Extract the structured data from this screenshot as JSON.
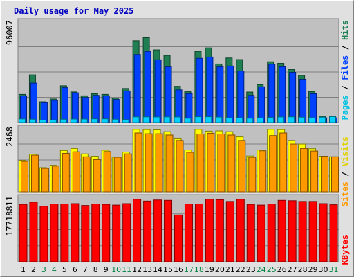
{
  "title": "Daily usage for May 2025",
  "colors": {
    "background": "#e0e0e0",
    "plot_bg": "#c0c0c0",
    "title_text": "#0000c0",
    "hits": "#1f7f52",
    "files": "#0040ff",
    "pages": "#00d0ff",
    "visits": "#ffff00",
    "sites": "#ff9900",
    "kbytes": "#ff0000",
    "weekend_label": "#008040",
    "weekday_label": "#000000"
  },
  "legends": {
    "top": [
      {
        "text": "Pages",
        "color": "#00c0e0"
      },
      {
        "text": " / ",
        "color": "#000000"
      },
      {
        "text": "Files",
        "color": "#0040ff"
      },
      {
        "text": " / ",
        "color": "#000000"
      },
      {
        "text": "Hits",
        "color": "#1f7f52"
      }
    ],
    "middle": [
      {
        "text": "Sites",
        "color": "#ff9900"
      },
      {
        "text": " / ",
        "color": "#000000"
      },
      {
        "text": "Visits",
        "color": "#e0d000"
      }
    ],
    "bottom": [
      {
        "text": "KBytes",
        "color": "#ff0000"
      }
    ]
  },
  "chart_data": [
    {
      "type": "bar",
      "panel": "hits-files-pages",
      "y_max_label": "96007",
      "ylim": [
        0,
        96007
      ],
      "grid": true,
      "categories": [
        "1",
        "2",
        "3",
        "4",
        "5",
        "6",
        "7",
        "8",
        "9",
        "10",
        "11",
        "12",
        "13",
        "14",
        "15",
        "16",
        "17",
        "18",
        "19",
        "20",
        "21",
        "22",
        "23",
        "24",
        "25",
        "26",
        "27",
        "28",
        "29",
        "30",
        "31"
      ],
      "series": [
        {
          "name": "Hits",
          "values": [
            26700,
            45300,
            19700,
            22400,
            34900,
            29000,
            25400,
            27400,
            26700,
            23300,
            32300,
            77700,
            80600,
            69000,
            63700,
            34400,
            29200,
            67600,
            70900,
            55600,
            61300,
            59800,
            28900,
            36000,
            57700,
            56200,
            50500,
            44800,
            29400,
            6000,
            6000
          ]
        },
        {
          "name": "Files",
          "values": [
            25400,
            37400,
            18800,
            21100,
            33100,
            28200,
            23900,
            25800,
            25400,
            21900,
            30000,
            64600,
            67500,
            59600,
            52900,
            31000,
            27400,
            61000,
            62200,
            52900,
            53700,
            48900,
            25800,
            34000,
            55400,
            53000,
            47700,
            41100,
            27300,
            4500,
            4500
          ]
        },
        {
          "name": "Pages",
          "values": [
            3400,
            3100,
            2400,
            2500,
            3100,
            3300,
            3300,
            3500,
            3500,
            3100,
            2800,
            5400,
            5400,
            5300,
            5400,
            5300,
            4100,
            5500,
            5500,
            5200,
            4600,
            4600,
            4100,
            4500,
            4800,
            5300,
            5400,
            5100,
            4700,
            5100,
            5600
          ]
        }
      ]
    },
    {
      "type": "bar",
      "panel": "visits-sites",
      "y_max_label": "2468",
      "ylim": [
        0,
        2468
      ],
      "grid": true,
      "categories": [
        "1",
        "2",
        "3",
        "4",
        "5",
        "6",
        "7",
        "8",
        "9",
        "10",
        "11",
        "12",
        "13",
        "14",
        "15",
        "16",
        "17",
        "18",
        "19",
        "20",
        "21",
        "22",
        "23",
        "24",
        "25",
        "26",
        "27",
        "28",
        "29",
        "30",
        "31"
      ],
      "series": [
        {
          "name": "Visits",
          "values": [
            1220,
            1460,
            940,
            1030,
            1600,
            1680,
            1470,
            1380,
            1610,
            1350,
            1540,
            2420,
            2410,
            2400,
            2330,
            2080,
            1620,
            2420,
            2350,
            2360,
            2330,
            2130,
            1390,
            1620,
            2420,
            2410,
            1990,
            1850,
            1670,
            1380,
            1360
          ]
        },
        {
          "name": "Sites",
          "values": [
            1180,
            1420,
            910,
            1000,
            1490,
            1550,
            1360,
            1250,
            1560,
            1340,
            1470,
            2280,
            2250,
            2250,
            2200,
            1990,
            1530,
            2240,
            2270,
            2240,
            2200,
            1990,
            1340,
            1590,
            2180,
            2280,
            1850,
            1680,
            1580,
            1380,
            1360
          ]
        }
      ]
    },
    {
      "type": "bar",
      "panel": "kbytes",
      "y_max_label": "17718811",
      "ylim": [
        0,
        17718811
      ],
      "grid": true,
      "categories": [
        "1",
        "2",
        "3",
        "4",
        "5",
        "6",
        "7",
        "8",
        "9",
        "10",
        "11",
        "12",
        "13",
        "14",
        "15",
        "16",
        "17",
        "18",
        "19",
        "20",
        "21",
        "22",
        "23",
        "24",
        "25",
        "26",
        "27",
        "28",
        "29",
        "30",
        "31"
      ],
      "series": [
        {
          "name": "KBytes",
          "values": [
            15800000,
            16400000,
            15300000,
            15900000,
            15900000,
            16000000,
            15500000,
            15900000,
            15800000,
            15600000,
            16000000,
            17200000,
            16700000,
            17000000,
            16900000,
            12900000,
            15900000,
            15900000,
            17200000,
            17100000,
            16600000,
            17200000,
            15800000,
            15600000,
            15900000,
            16900000,
            16800000,
            16600000,
            16600000,
            16000000,
            15700000
          ]
        }
      ]
    }
  ],
  "weekend_days": [
    3,
    4,
    10,
    11,
    17,
    18,
    24,
    25,
    31
  ]
}
